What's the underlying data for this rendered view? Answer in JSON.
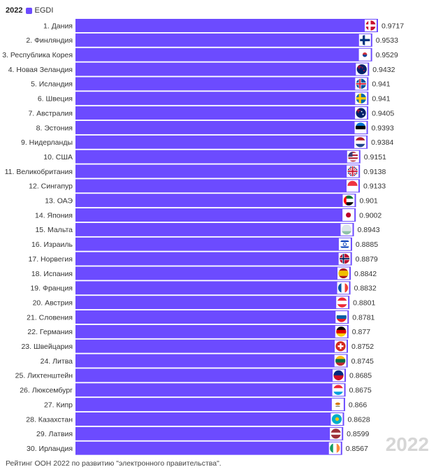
{
  "legend": {
    "year": "2022",
    "series_name": "EGDI"
  },
  "watermark": "2022",
  "footnote": "Рейтинг ООН 2022 по развитию \"электронного правительства\".",
  "colors": {
    "bar": "#6c4bff",
    "text": "#333333",
    "watermark": "#d6d6d6"
  },
  "chart_data": {
    "type": "bar",
    "orientation": "horizontal",
    "series": [
      {
        "name": "EGDI"
      }
    ],
    "categories": [
      "1. Дания",
      "2. Финляндия",
      "3. Республика Корея",
      "4. Новая Зеландия",
      "5. Исландия",
      "6. Швеция",
      "7. Австралия",
      "8. Эстония",
      "9. Нидерланды",
      "10. США",
      "11. Великобритания",
      "12. Сингапур",
      "13. ОАЭ",
      "14. Япония",
      "15. Мальта",
      "16. Израиль",
      "17. Норвегия",
      "18. Испания",
      "19. Франция",
      "20. Австрия",
      "21. Словения",
      "22. Германия",
      "23. Швейцария",
      "24. Литва",
      "25. Лихтенштейн",
      "26. Люксембург",
      "27. Кипр",
      "28. Казахстан",
      "29. Латвия",
      "30. Ирландия"
    ],
    "values": [
      0.9717,
      0.9533,
      0.9529,
      0.9432,
      0.941,
      0.941,
      0.9405,
      0.9393,
      0.9384,
      0.9151,
      0.9138,
      0.9133,
      0.901,
      0.9002,
      0.8943,
      0.8885,
      0.8879,
      0.8842,
      0.8832,
      0.8801,
      0.8781,
      0.877,
      0.8752,
      0.8745,
      0.8685,
      0.8675,
      0.866,
      0.8628,
      0.8599,
      0.8567
    ],
    "value_labels": [
      "0.9717",
      "0.9533",
      "0.9529",
      "0.9432",
      "0.941",
      "0.941",
      "0.9405",
      "0.9393",
      "0.9384",
      "0.9151",
      "0.9138",
      "0.9133",
      "0.901",
      "0.9002",
      "0.8943",
      "0.8885",
      "0.8879",
      "0.8842",
      "0.8832",
      "0.8801",
      "0.8781",
      "0.877",
      "0.8752",
      "0.8745",
      "0.8685",
      "0.8675",
      "0.866",
      "0.8628",
      "0.8599",
      "0.8567"
    ],
    "flag_icons": [
      "denmark-flag-icon",
      "finland-flag-icon",
      "south-korea-flag-icon",
      "new-zealand-flag-icon",
      "iceland-flag-icon",
      "sweden-flag-icon",
      "australia-flag-icon",
      "estonia-flag-icon",
      "netherlands-flag-icon",
      "usa-flag-icon",
      "uk-flag-icon",
      "singapore-flag-icon",
      "uae-flag-icon",
      "japan-flag-icon",
      "malta-flag-icon",
      "israel-flag-icon",
      "norway-flag-icon",
      "spain-flag-icon",
      "france-flag-icon",
      "austria-flag-icon",
      "slovenia-flag-icon",
      "germany-flag-icon",
      "switzerland-flag-icon",
      "lithuania-flag-icon",
      "liechtenstein-flag-icon",
      "luxembourg-flag-icon",
      "cyprus-flag-icon",
      "kazakhstan-flag-icon",
      "latvia-flag-icon",
      "ireland-flag-icon"
    ],
    "xlim": [
      0,
      0.9717
    ],
    "grid": false,
    "axis_visible": false,
    "legend_position": "top-left"
  }
}
